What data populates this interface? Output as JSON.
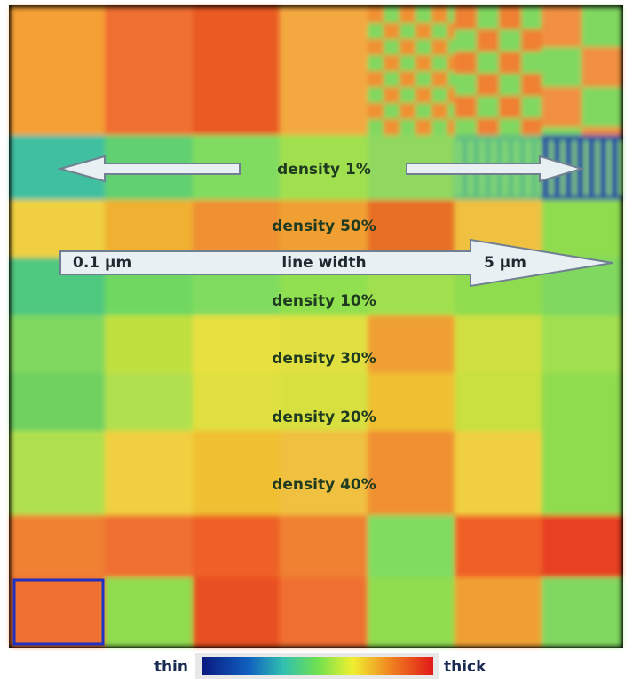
{
  "labels": {
    "density_1": "density 1%",
    "density_50": "density 50%",
    "width_min": "0.1 μm",
    "line_width": "line width",
    "width_max": "5 μm",
    "density_10": "density 10%",
    "density_30": "density 30%",
    "density_20": "density 20%",
    "density_40": "density 40%"
  },
  "legend": {
    "thin": "thin",
    "thick": "thick"
  }
}
